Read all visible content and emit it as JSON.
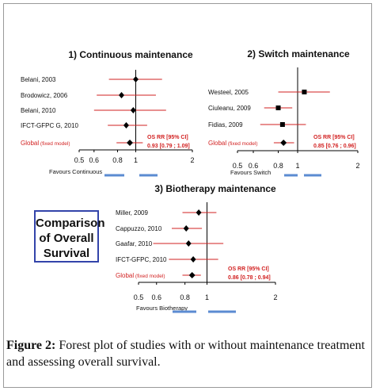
{
  "comparison_box": [
    "Comparison",
    "of Overall",
    "Survival"
  ],
  "caption": {
    "label": "Figure 2:",
    "text": " Forest plot of studies with or without maintenance treatment and assessing overall survival."
  },
  "colors": {
    "ci": "#d22222",
    "point": "#000000",
    "axis": "#000000",
    "favours_bar": "#5b8bd2",
    "global_text": "#d22222"
  },
  "chart_data": [
    {
      "type": "forest",
      "title": "1) Continuous maintenance",
      "x_scale": "log",
      "xlim": [
        0.5,
        2
      ],
      "x_ticks": [
        "0.5",
        "0.6",
        "0.8",
        "1",
        "2"
      ],
      "favours_label": "Favours Continuous",
      "summary_label": "OS RR [95% CI]",
      "summary_value": "0.93 [0.79 ; 1.09]",
      "studies": [
        {
          "name": "Belani, 2003",
          "rr": 1.0,
          "lo": 0.72,
          "hi": 1.38
        },
        {
          "name": "Brodowicz, 2006",
          "rr": 0.84,
          "lo": 0.62,
          "hi": 1.28
        },
        {
          "name": "Belani, 2010",
          "rr": 0.97,
          "lo": 0.6,
          "hi": 1.45
        },
        {
          "name": "IFCT-GFPC G, 2010",
          "rr": 0.89,
          "lo": 0.71,
          "hi": 1.15
        },
        {
          "name": "Global",
          "suffix": "(fixed model)",
          "rr": 0.93,
          "lo": 0.79,
          "hi": 1.09,
          "global": true
        }
      ]
    },
    {
      "type": "forest",
      "title": "2) Switch maintenance",
      "x_scale": "log",
      "xlim": [
        0.5,
        2
      ],
      "x_ticks": [
        "0.5",
        "0.6",
        "0.8",
        "1",
        "2"
      ],
      "favours_label": "Favours Switch",
      "summary_label": "OS RR [95% CI]",
      "summary_value": "0.85 [0.76 ; 0.96]",
      "studies": [
        {
          "name": "Westeel, 2005",
          "rr": 1.08,
          "lo": 0.8,
          "hi": 1.45
        },
        {
          "name": "Ciuleanu, 2009",
          "rr": 0.8,
          "lo": 0.68,
          "hi": 0.94
        },
        {
          "name": "Fidias, 2009",
          "rr": 0.84,
          "lo": 0.65,
          "hi": 1.1
        },
        {
          "name": "Global",
          "suffix": "(fixed model)",
          "rr": 0.85,
          "lo": 0.76,
          "hi": 0.96,
          "global": true
        }
      ]
    },
    {
      "type": "forest",
      "title": "3) Biotherapy maintenance",
      "x_scale": "log",
      "xlim": [
        0.5,
        2
      ],
      "x_ticks": [
        "0.5",
        "0.6",
        "0.8",
        "1",
        "2"
      ],
      "favours_label": "Favours Biotherapy",
      "summary_label": "OS RR [95% CI]",
      "summary_value": "0.86 [0.78 ; 0.94]",
      "studies": [
        {
          "name": "Miller, 2009",
          "rr": 0.92,
          "lo": 0.78,
          "hi": 1.1
        },
        {
          "name": "Cappuzzo, 2010",
          "rr": 0.81,
          "lo": 0.7,
          "hi": 0.95
        },
        {
          "name": "Gaafar, 2010",
          "rr": 0.83,
          "lo": 0.58,
          "hi": 1.18
        },
        {
          "name": "IFCT-GFPC, 2010",
          "rr": 0.87,
          "lo": 0.68,
          "hi": 1.12
        },
        {
          "name": "Global",
          "suffix": "(fixed model)",
          "rr": 0.86,
          "lo": 0.78,
          "hi": 0.94,
          "global": true
        }
      ]
    }
  ]
}
